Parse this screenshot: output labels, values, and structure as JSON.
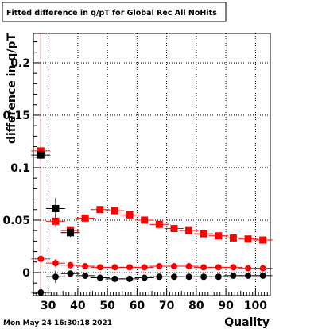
{
  "title": "Fitted difference in q/pT for Global Rec All NoHits",
  "timestamp": "Mon May 24 16:30:18 2021",
  "chart_data": {
    "type": "scatter",
    "title": "Fitted difference in q/pT for Global Rec All NoHits",
    "xlabel": "Quality",
    "ylabel": "difference in q/pT",
    "xlim": [
      25,
      105
    ],
    "ylim": [
      -0.022,
      0.228
    ],
    "x_ticks": [
      30,
      40,
      50,
      60,
      70,
      80,
      90,
      100
    ],
    "x_tick_labels": [
      "30",
      "40",
      "50",
      "60",
      "70",
      "80",
      "90",
      "100"
    ],
    "y_ticks": [
      0,
      0.05,
      0.1,
      0.15,
      0.2
    ],
    "y_tick_labels": [
      "0",
      "0.05",
      "0.1",
      "0.15",
      "0.2"
    ],
    "grid": true,
    "reference_line_x": 27.5,
    "series": [
      {
        "marker": "square",
        "color": "#ff0000",
        "x": [
          27.5,
          32.5,
          37.5,
          42.5,
          47.5,
          52.5,
          57.5,
          62.5,
          67.5,
          72.5,
          77.5,
          82.5,
          87.5,
          92.5,
          97.5,
          102.5
        ],
        "y": [
          0.116,
          0.049,
          0.04,
          0.052,
          0.06,
          0.059,
          0.055,
          0.05,
          0.046,
          0.042,
          0.04,
          0.037,
          0.035,
          0.033,
          0.032,
          0.031
        ],
        "yerr": [
          0.004,
          0.006,
          0.003,
          0.002,
          0.002,
          0.002,
          0.002,
          0.002,
          0.002,
          0.002,
          0.002,
          0.002,
          0.002,
          0.002,
          0.002,
          0.002
        ]
      },
      {
        "marker": "square",
        "color": "#000000",
        "x": [
          27.5,
          32.5,
          37.5
        ],
        "y": [
          0.112,
          0.061,
          0.038
        ],
        "yerr": [
          0.004,
          0.01,
          0.004
        ]
      },
      {
        "marker": "circle",
        "color": "#ff0000",
        "x": [
          27.5,
          32.5,
          37.5,
          42.5,
          47.5,
          52.5,
          57.5,
          62.5,
          67.5,
          72.5,
          77.5,
          82.5,
          87.5,
          92.5,
          97.5,
          102.5
        ],
        "y": [
          0.013,
          0.009,
          0.007,
          0.006,
          0.005,
          0.005,
          0.005,
          0.005,
          0.006,
          0.006,
          0.006,
          0.005,
          0.005,
          0.005,
          0.004,
          0.004
        ],
        "yerr": [
          0.002,
          0.004,
          0.002,
          0.001,
          0.001,
          0.001,
          0.001,
          0.001,
          0.001,
          0.001,
          0.001,
          0.001,
          0.001,
          0.001,
          0.001,
          0.001
        ]
      },
      {
        "marker": "circle",
        "color": "#000000",
        "x": [
          27.5,
          32.5,
          37.5,
          42.5,
          47.5,
          52.5,
          57.5,
          62.5,
          67.5,
          72.5,
          77.5,
          82.5,
          87.5,
          92.5,
          97.5,
          102.5
        ],
        "y": [
          -0.019,
          -0.004,
          -0.001,
          -0.003,
          -0.005,
          -0.006,
          -0.006,
          -0.005,
          -0.004,
          -0.004,
          -0.004,
          -0.004,
          -0.004,
          -0.003,
          -0.003,
          -0.003
        ],
        "yerr": [
          0.002,
          0.006,
          0.002,
          0.001,
          0.001,
          0.001,
          0.001,
          0.001,
          0.001,
          0.001,
          0.001,
          0.001,
          0.001,
          0.001,
          0.001,
          0.001
        ]
      }
    ]
  }
}
